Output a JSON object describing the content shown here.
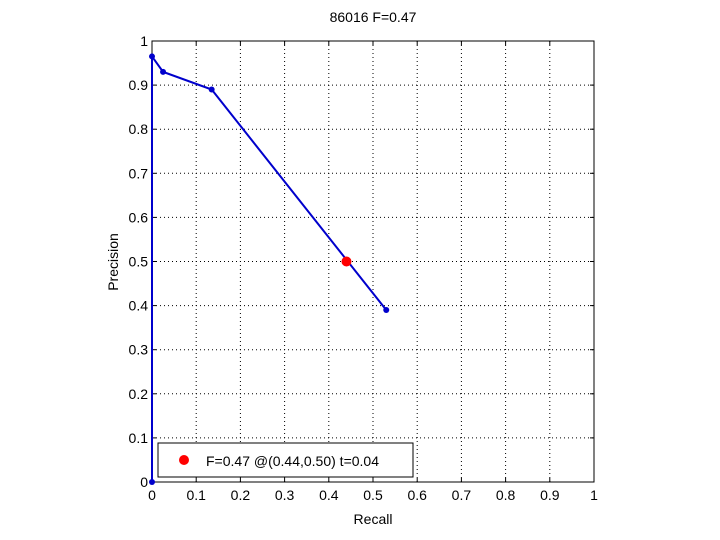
{
  "chart_data": {
    "type": "line",
    "title": "86016 F=0.47",
    "xlabel": "Recall",
    "ylabel": "Precision",
    "xlim": [
      0,
      1
    ],
    "ylim": [
      0,
      1
    ],
    "xticks": [
      "0",
      "0.1",
      "0.2",
      "0.3",
      "0.4",
      "0.5",
      "0.6",
      "0.7",
      "0.8",
      "0.9",
      "1"
    ],
    "yticks": [
      "0",
      "0.1",
      "0.2",
      "0.3",
      "0.4",
      "0.5",
      "0.6",
      "0.7",
      "0.8",
      "0.9",
      "1"
    ],
    "grid": true,
    "legend_position": "bottom-left",
    "series": [
      {
        "color": "#0000cc",
        "marker": "dot",
        "x": [
          0.0,
          0.0,
          0.025,
          0.135,
          0.53
        ],
        "y": [
          0.0,
          0.965,
          0.93,
          0.89,
          0.39
        ]
      }
    ],
    "best_point": {
      "x": 0.44,
      "y": 0.5,
      "color": "#ff0000",
      "legend": "F=0.47 @(0.44,0.50) t=0.04"
    }
  }
}
